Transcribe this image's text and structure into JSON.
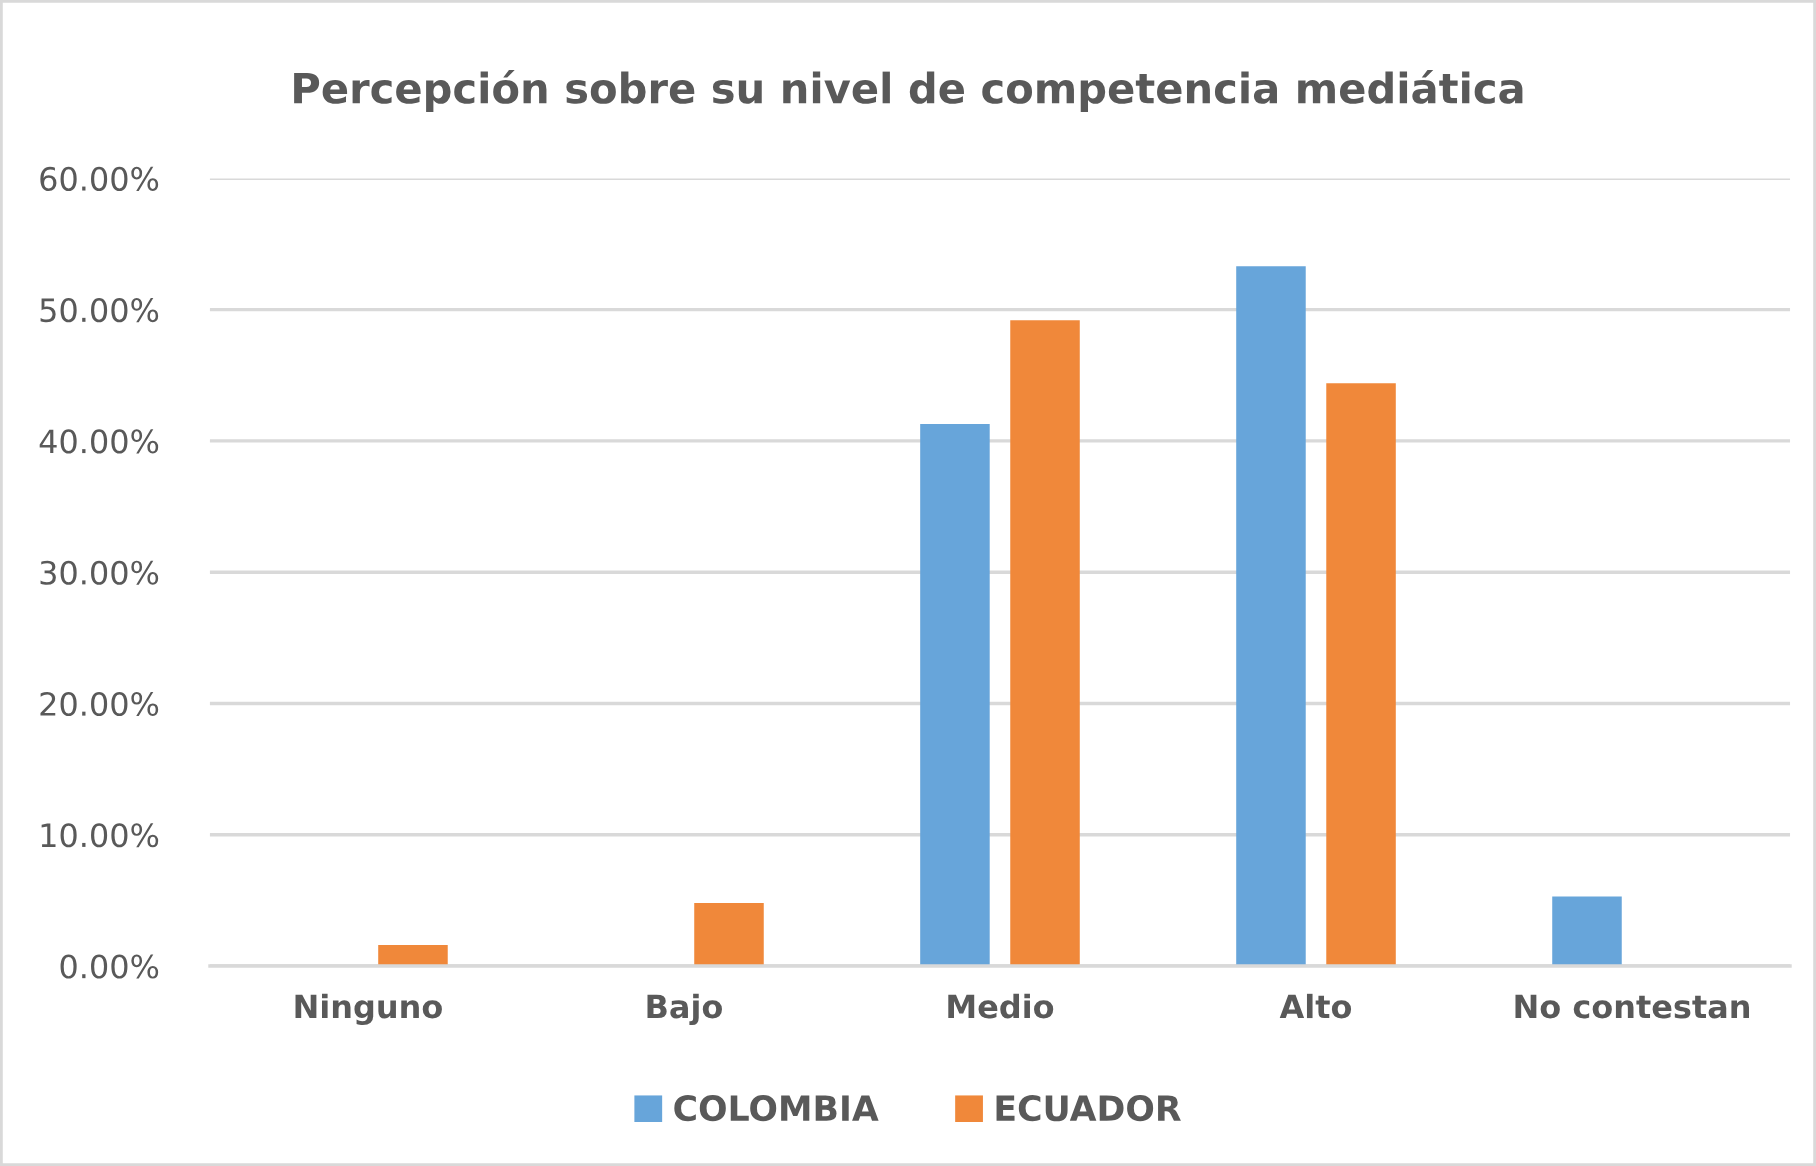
{
  "chart_data": {
    "type": "bar",
    "title": "Percepción sobre su nivel de competencia mediática",
    "categories": [
      "Ninguno",
      "Bajo",
      "Medio",
      "Alto",
      "No contestan"
    ],
    "series": [
      {
        "name": "COLOMBIA",
        "color": "#67a5da",
        "values": [
          0,
          0,
          41.3,
          53.3,
          5.3
        ]
      },
      {
        "name": "ECUADOR",
        "color": "#f0883a",
        "values": [
          1.6,
          4.8,
          49.2,
          44.4,
          0
        ]
      }
    ],
    "ylim": [
      0,
      60
    ],
    "yticks": [
      {
        "value": 0,
        "label": "0.00%"
      },
      {
        "value": 10,
        "label": "10.00%"
      },
      {
        "value": 20,
        "label": "20.00%"
      },
      {
        "value": 30,
        "label": "30.00%"
      },
      {
        "value": 40,
        "label": "40.00%"
      },
      {
        "value": 50,
        "label": "50.00%"
      },
      {
        "value": 60,
        "label": "60.00%"
      }
    ],
    "grid": "y",
    "legend": "bottom"
  }
}
